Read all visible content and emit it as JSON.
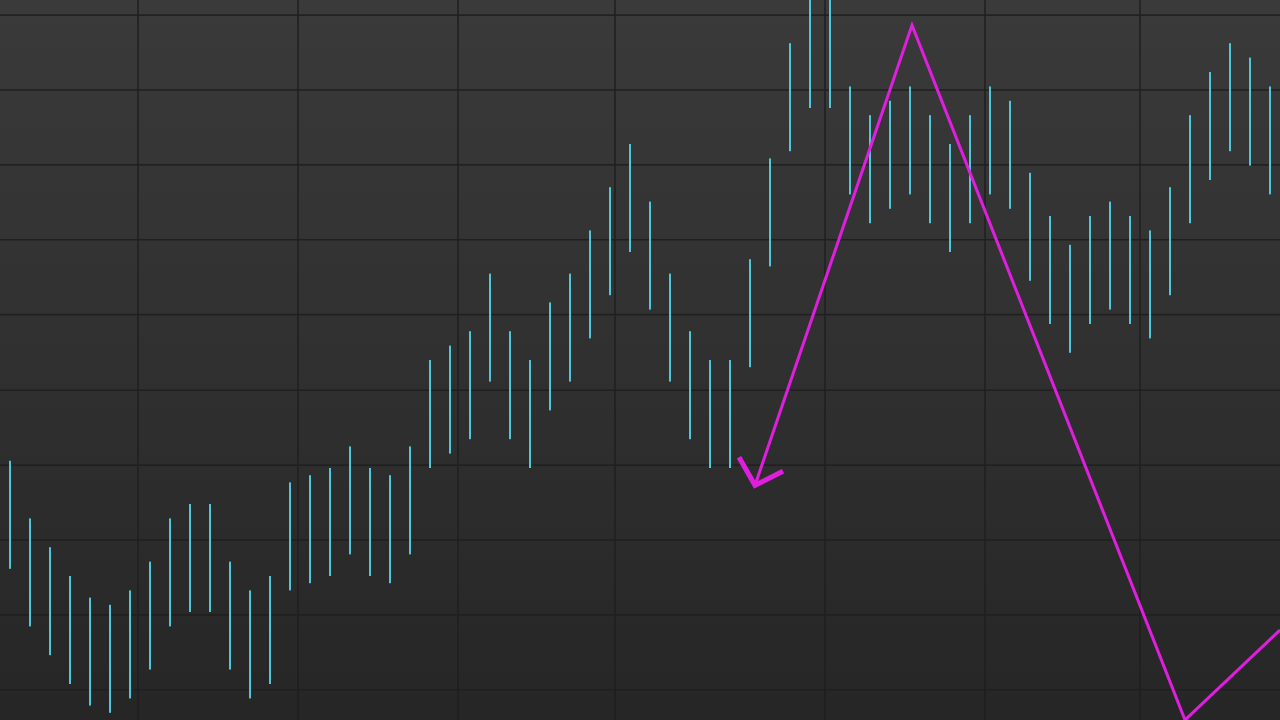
{
  "chart_data": {
    "type": "range-bar",
    "highs": [
      36,
      28,
      24,
      20,
      17,
      16,
      18,
      22,
      28,
      30,
      30,
      22,
      18,
      20,
      33,
      34,
      35,
      38,
      35,
      34,
      38,
      50,
      52,
      54,
      62,
      54,
      50,
      58,
      62,
      68,
      74,
      80,
      72,
      62,
      54,
      50,
      50,
      64,
      78,
      94,
      100,
      100,
      88,
      84,
      86,
      88,
      84,
      80,
      84,
      88,
      86,
      76,
      70,
      66,
      70,
      72,
      70,
      68,
      74,
      84,
      90,
      94,
      92,
      88
    ],
    "lows": [
      21,
      13,
      9,
      5,
      2,
      1,
      3,
      7,
      13,
      15,
      15,
      7,
      3,
      5,
      18,
      19,
      20,
      23,
      20,
      19,
      23,
      35,
      37,
      39,
      47,
      39,
      35,
      43,
      47,
      53,
      59,
      65,
      57,
      47,
      39,
      35,
      35,
      49,
      63,
      79,
      85,
      85,
      73,
      69,
      71,
      73,
      69,
      65,
      69,
      73,
      71,
      61,
      55,
      51,
      55,
      57,
      55,
      53,
      59,
      69,
      75,
      79,
      77,
      73
    ],
    "color": "#4fc6da",
    "overlay": {
      "type": "line",
      "color": "#e01ee0",
      "x": [
        37.25,
        45.1,
        58.75,
        63.5
      ],
      "values": [
        32.6,
        96.5,
        0,
        12.5
      ]
    },
    "xlim": [
      -0.5,
      63.5
    ],
    "ylim": [
      0,
      100
    ],
    "xticks": [
      6.4,
      14.4,
      22.4,
      30.25,
      40.75,
      48.75,
      56.5
    ],
    "yticks": [
      4.2,
      14.6,
      25,
      35.4,
      45.8,
      56.3,
      66.7,
      77.1,
      87.5,
      97.9
    ],
    "grid": true
  }
}
